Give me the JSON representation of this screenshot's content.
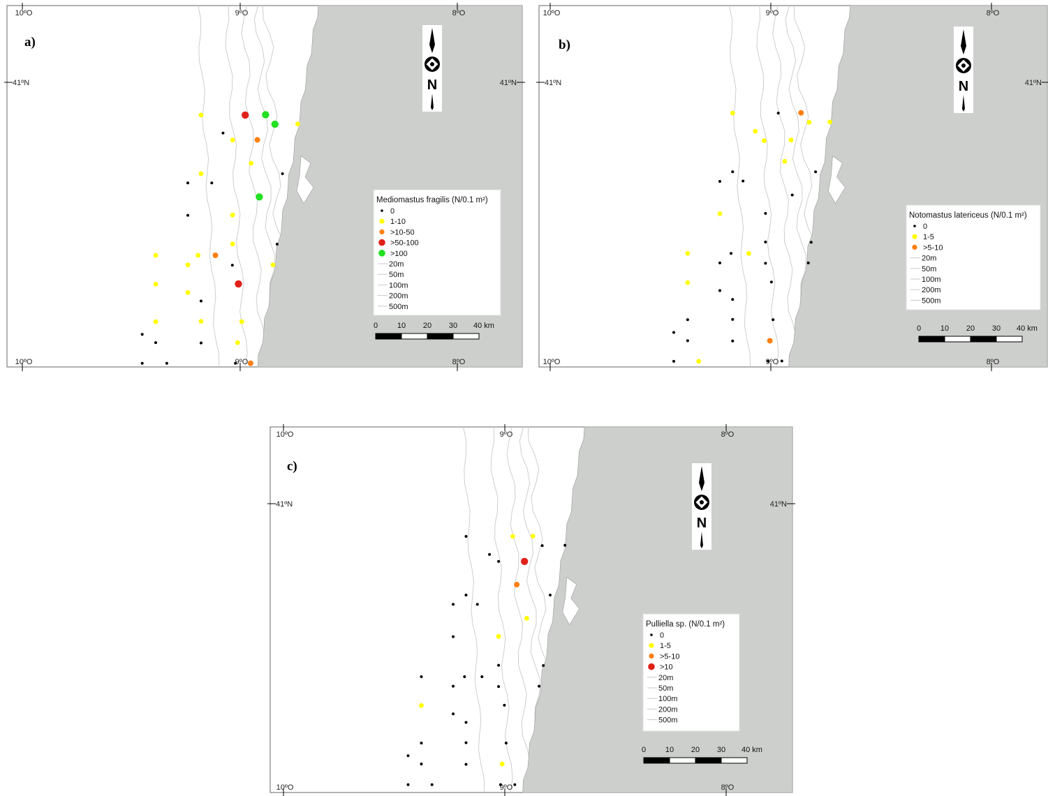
{
  "colors": {
    "land": "#cdcfcd",
    "sea": "#ffffff",
    "contour": "#c9c9c9",
    "zero": "#000000",
    "yellow": "#ffff00",
    "orange": "#ff7f0e",
    "red": "#e0211a",
    "green": "#22e022"
  },
  "axis_labels": {
    "lon_left": "10ºO",
    "lon_mid": "9ºO",
    "lon_right": "8ºO",
    "lat": "41ºN"
  },
  "north_arrow": {
    "label": "N",
    "icon": "north-arrow-icon"
  },
  "scale_bar": {
    "ticks": [
      "0",
      "10",
      "20",
      "30",
      "40 km"
    ]
  },
  "panels": [
    {
      "label": "a)",
      "legend": {
        "title": "Mediomastus fragilis (N/0.1 m²)",
        "classes": [
          {
            "label": "0",
            "color": "zero"
          },
          {
            "label": "1-10",
            "color": "yellow"
          },
          {
            "label": ">10-50",
            "color": "orange"
          },
          {
            "label": ">50-100",
            "color": "red"
          },
          {
            "label": ">100",
            "color": "green"
          }
        ],
        "depths": [
          "20m",
          "50m",
          "100m",
          "200m",
          "500m"
        ]
      },
      "stations": [
        {
          "lon": -9.18,
          "lat": 40.897,
          "cls": 1
        },
        {
          "lon": -8.977,
          "lat": 40.897,
          "cls": 3
        },
        {
          "lon": -8.883,
          "lat": 40.898,
          "cls": 4
        },
        {
          "lon": -8.84,
          "lat": 40.868,
          "cls": 4
        },
        {
          "lon": -8.735,
          "lat": 40.869,
          "cls": 1
        },
        {
          "lon": -9.079,
          "lat": 40.84,
          "cls": 0
        },
        {
          "lon": -9.035,
          "lat": 40.818,
          "cls": 1
        },
        {
          "lon": -8.921,
          "lat": 40.819,
          "cls": 2
        },
        {
          "lon": -8.95,
          "lat": 40.745,
          "cls": 1
        },
        {
          "lon": -9.18,
          "lat": 40.712,
          "cls": 1
        },
        {
          "lon": -9.241,
          "lat": 40.683,
          "cls": 0
        },
        {
          "lon": -9.131,
          "lat": 40.683,
          "cls": 0
        },
        {
          "lon": -8.805,
          "lat": 40.712,
          "cls": 0
        },
        {
          "lon": -8.912,
          "lat": 40.639,
          "cls": 4
        },
        {
          "lon": -9.241,
          "lat": 40.581,
          "cls": 0
        },
        {
          "lon": -9.035,
          "lat": 40.582,
          "cls": 1
        },
        {
          "lon": -9.035,
          "lat": 40.491,
          "cls": 1
        },
        {
          "lon": -8.83,
          "lat": 40.49,
          "cls": 0
        },
        {
          "lon": -9.389,
          "lat": 40.455,
          "cls": 1
        },
        {
          "lon": -9.194,
          "lat": 40.455,
          "cls": 1
        },
        {
          "lon": -9.114,
          "lat": 40.455,
          "cls": 2
        },
        {
          "lon": -9.241,
          "lat": 40.425,
          "cls": 1
        },
        {
          "lon": -9.036,
          "lat": 40.424,
          "cls": 0
        },
        {
          "lon": -8.849,
          "lat": 40.425,
          "cls": 1
        },
        {
          "lon": -9.389,
          "lat": 40.364,
          "cls": 1
        },
        {
          "lon": -9.008,
          "lat": 40.365,
          "cls": 3
        },
        {
          "lon": -9.241,
          "lat": 40.338,
          "cls": 1
        },
        {
          "lon": -9.18,
          "lat": 40.311,
          "cls": 0
        },
        {
          "lon": -9.389,
          "lat": 40.246,
          "cls": 1
        },
        {
          "lon": -9.18,
          "lat": 40.247,
          "cls": 1
        },
        {
          "lon": -8.993,
          "lat": 40.246,
          "cls": 1
        },
        {
          "lon": -9.451,
          "lat": 40.206,
          "cls": 0
        },
        {
          "lon": -9.389,
          "lat": 40.18,
          "cls": 0
        },
        {
          "lon": -9.18,
          "lat": 40.179,
          "cls": 0
        },
        {
          "lon": -9.012,
          "lat": 40.18,
          "cls": 1
        },
        {
          "lon": -9.451,
          "lat": 40.115,
          "cls": 0
        },
        {
          "lon": -9.338,
          "lat": 40.115,
          "cls": 0
        },
        {
          "lon": -9.022,
          "lat": 40.115,
          "cls": 0
        },
        {
          "lon": -8.952,
          "lat": 40.115,
          "cls": 2
        }
      ]
    },
    {
      "label": "b)",
      "legend": {
        "title": "Notomastus latericeus (N/0.1 m²)",
        "classes": [
          {
            "label": "0",
            "color": "zero"
          },
          {
            "label": "1-5",
            "color": "yellow"
          },
          {
            "label": ">5-10",
            "color": "orange"
          }
        ],
        "depths": [
          "20m",
          "50m",
          "100m",
          "200m",
          "500m"
        ]
      },
      "stations": [
        {
          "lon": -9.173,
          "lat": 40.903,
          "cls": 1
        },
        {
          "lon": -8.966,
          "lat": 40.903,
          "cls": 0
        },
        {
          "lon": -8.863,
          "lat": 40.904,
          "cls": 2
        },
        {
          "lon": -8.826,
          "lat": 40.874,
          "cls": 1
        },
        {
          "lon": -8.732,
          "lat": 40.875,
          "cls": 1
        },
        {
          "lon": -9.07,
          "lat": 40.846,
          "cls": 1
        },
        {
          "lon": -9.03,
          "lat": 40.816,
          "cls": 1
        },
        {
          "lon": -8.908,
          "lat": 40.818,
          "cls": 1
        },
        {
          "lon": -8.937,
          "lat": 40.751,
          "cls": 1
        },
        {
          "lon": -9.173,
          "lat": 40.718,
          "cls": 0
        },
        {
          "lon": -9.231,
          "lat": 40.688,
          "cls": 0
        },
        {
          "lon": -9.126,
          "lat": 40.689,
          "cls": 0
        },
        {
          "lon": -8.797,
          "lat": 40.718,
          "cls": 0
        },
        {
          "lon": -8.903,
          "lat": 40.645,
          "cls": 0
        },
        {
          "lon": -9.231,
          "lat": 40.586,
          "cls": 1
        },
        {
          "lon": -9.024,
          "lat": 40.587,
          "cls": 0
        },
        {
          "lon": -9.024,
          "lat": 40.497,
          "cls": 0
        },
        {
          "lon": -8.817,
          "lat": 40.496,
          "cls": 0
        },
        {
          "lon": -9.377,
          "lat": 40.461,
          "cls": 1
        },
        {
          "lon": -9.18,
          "lat": 40.461,
          "cls": 0
        },
        {
          "lon": -9.1,
          "lat": 40.461,
          "cls": 1
        },
        {
          "lon": -9.231,
          "lat": 40.431,
          "cls": 0
        },
        {
          "lon": -9.024,
          "lat": 40.43,
          "cls": 0
        },
        {
          "lon": -8.83,
          "lat": 40.431,
          "cls": 0
        },
        {
          "lon": -9.377,
          "lat": 40.369,
          "cls": 1
        },
        {
          "lon": -8.997,
          "lat": 40.371,
          "cls": 0
        },
        {
          "lon": -9.231,
          "lat": 40.344,
          "cls": 0
        },
        {
          "lon": -9.173,
          "lat": 40.316,
          "cls": 0
        },
        {
          "lon": -9.377,
          "lat": 40.252,
          "cls": 0
        },
        {
          "lon": -9.173,
          "lat": 40.253,
          "cls": 0
        },
        {
          "lon": -8.99,
          "lat": 40.252,
          "cls": 0
        },
        {
          "lon": -9.44,
          "lat": 40.212,
          "cls": 0
        },
        {
          "lon": -9.377,
          "lat": 40.186,
          "cls": 0
        },
        {
          "lon": -9.173,
          "lat": 40.185,
          "cls": 0
        },
        {
          "lon": -9.004,
          "lat": 40.186,
          "cls": 2
        },
        {
          "lon": -9.44,
          "lat": 40.121,
          "cls": 0
        },
        {
          "lon": -9.327,
          "lat": 40.121,
          "cls": 1
        },
        {
          "lon": -9.012,
          "lat": 40.121,
          "cls": 0
        },
        {
          "lon": -8.95,
          "lat": 40.122,
          "cls": 0
        }
      ]
    },
    {
      "label": "c)",
      "legend": {
        "title": "Pulliella sp. (N/0.1 m²)",
        "classes": [
          {
            "label": "0",
            "color": "zero"
          },
          {
            "label": "1-5",
            "color": "yellow"
          },
          {
            "label": ">5-10",
            "color": "orange"
          },
          {
            "label": ">10",
            "color": "red"
          }
        ],
        "depths": [
          "20m",
          "50m",
          "100m",
          "200m",
          "500m"
        ]
      },
      "stations": [
        {
          "lon": -9.175,
          "lat": 40.897,
          "cls": 0
        },
        {
          "lon": -8.964,
          "lat": 40.897,
          "cls": 1
        },
        {
          "lon": -8.873,
          "lat": 40.898,
          "cls": 1
        },
        {
          "lon": -8.831,
          "lat": 40.868,
          "cls": 0
        },
        {
          "lon": -8.728,
          "lat": 40.869,
          "cls": 0
        },
        {
          "lon": -9.069,
          "lat": 40.84,
          "cls": 0
        },
        {
          "lon": -9.028,
          "lat": 40.818,
          "cls": 0
        },
        {
          "lon": -8.911,
          "lat": 40.818,
          "cls": 3
        },
        {
          "lon": -8.946,
          "lat": 40.745,
          "cls": 2
        },
        {
          "lon": -9.175,
          "lat": 40.712,
          "cls": 0
        },
        {
          "lon": -9.233,
          "lat": 40.683,
          "cls": 0
        },
        {
          "lon": -9.124,
          "lat": 40.683,
          "cls": 0
        },
        {
          "lon": -8.795,
          "lat": 40.712,
          "cls": 0
        },
        {
          "lon": -8.901,
          "lat": 40.639,
          "cls": 1
        },
        {
          "lon": -9.233,
          "lat": 40.581,
          "cls": 0
        },
        {
          "lon": -9.028,
          "lat": 40.582,
          "cls": 1
        },
        {
          "lon": -9.028,
          "lat": 40.491,
          "cls": 0
        },
        {
          "lon": -8.826,
          "lat": 40.49,
          "cls": 0
        },
        {
          "lon": -9.377,
          "lat": 40.455,
          "cls": 0
        },
        {
          "lon": -9.182,
          "lat": 40.455,
          "cls": 0
        },
        {
          "lon": -9.103,
          "lat": 40.455,
          "cls": 0
        },
        {
          "lon": -9.233,
          "lat": 40.425,
          "cls": 0
        },
        {
          "lon": -9.028,
          "lat": 40.424,
          "cls": 0
        },
        {
          "lon": -8.845,
          "lat": 40.425,
          "cls": 0
        },
        {
          "lon": -9.377,
          "lat": 40.364,
          "cls": 1
        },
        {
          "lon": -9.002,
          "lat": 40.365,
          "cls": 0
        },
        {
          "lon": -9.233,
          "lat": 40.338,
          "cls": 0
        },
        {
          "lon": -9.175,
          "lat": 40.311,
          "cls": 0
        },
        {
          "lon": -9.377,
          "lat": 40.246,
          "cls": 0
        },
        {
          "lon": -9.175,
          "lat": 40.247,
          "cls": 0
        },
        {
          "lon": -8.994,
          "lat": 40.246,
          "cls": 0
        },
        {
          "lon": -9.437,
          "lat": 40.206,
          "cls": 0
        },
        {
          "lon": -9.377,
          "lat": 40.18,
          "cls": 0
        },
        {
          "lon": -9.175,
          "lat": 40.179,
          "cls": 0
        },
        {
          "lon": -9.012,
          "lat": 40.18,
          "cls": 1
        },
        {
          "lon": -9.437,
          "lat": 40.115,
          "cls": 0
        },
        {
          "lon": -9.329,
          "lat": 40.115,
          "cls": 0
        },
        {
          "lon": -9.019,
          "lat": 40.115,
          "cls": 0
        },
        {
          "lon": -8.955,
          "lat": 40.115,
          "cls": 0
        }
      ]
    }
  ]
}
